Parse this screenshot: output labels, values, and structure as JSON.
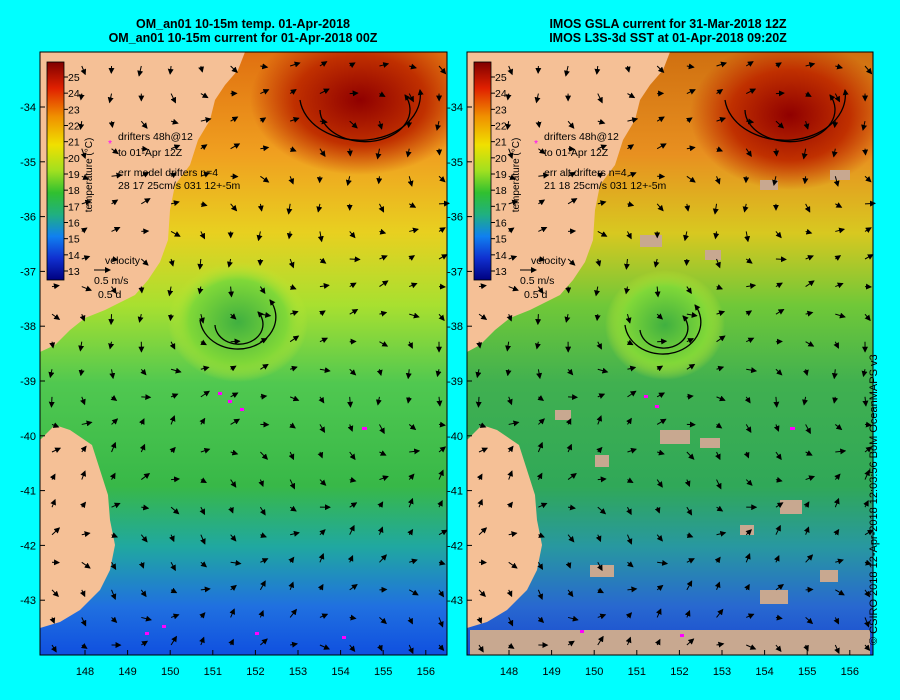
{
  "left_panel": {
    "title_line1": "OM_an01 10-15m temp. 01-Apr-2018",
    "title_line2": "OM_an01 10-15m current for 01-Apr-2018 00Z",
    "annot_drifters": "drifters 48h@12",
    "annot_to": "to 01-Apr 12Z",
    "annot_err": "err model drifters n=4",
    "annot_stats": "28 17 25cm/s 031 12+-5m"
  },
  "right_panel": {
    "title_line1": "IMOS GSLA current for 31-Mar-2018 12Z",
    "title_line2": "IMOS L3S-3d SST at 01-Apr-2018 09:20Z",
    "annot_drifters": "drifters 48h@12",
    "annot_to": "to 01-Apr 12Z",
    "annot_err": "err alt drifters n=4",
    "annot_stats": "21 18 25cm/s 031 12+-5m"
  },
  "colorbar": {
    "label": "temperature (°C)",
    "ticks": [
      "25",
      "24",
      "23",
      "22",
      "21",
      "20",
      "19",
      "18",
      "17",
      "16",
      "15",
      "14",
      "13"
    ]
  },
  "velocity_key": {
    "label": "velocity",
    "speed": "0.5 m/s",
    "duration": "0.5 d"
  },
  "lat_ticks": [
    "-34",
    "-35",
    "-36",
    "-37",
    "-38",
    "-39",
    "-40",
    "-41",
    "-42",
    "-43"
  ],
  "lon_ticks": [
    "148",
    "149",
    "150",
    "151",
    "152",
    "153",
    "154",
    "155",
    "156"
  ],
  "credit": "© CSIRO 2018   12-Apr-2018 12:03:56 BoM OceanMAPS v3",
  "colors": {
    "background": "#00ffff",
    "land": "#f5c096",
    "no_data": "#c8a890",
    "drifter": "#ff00ff"
  }
}
